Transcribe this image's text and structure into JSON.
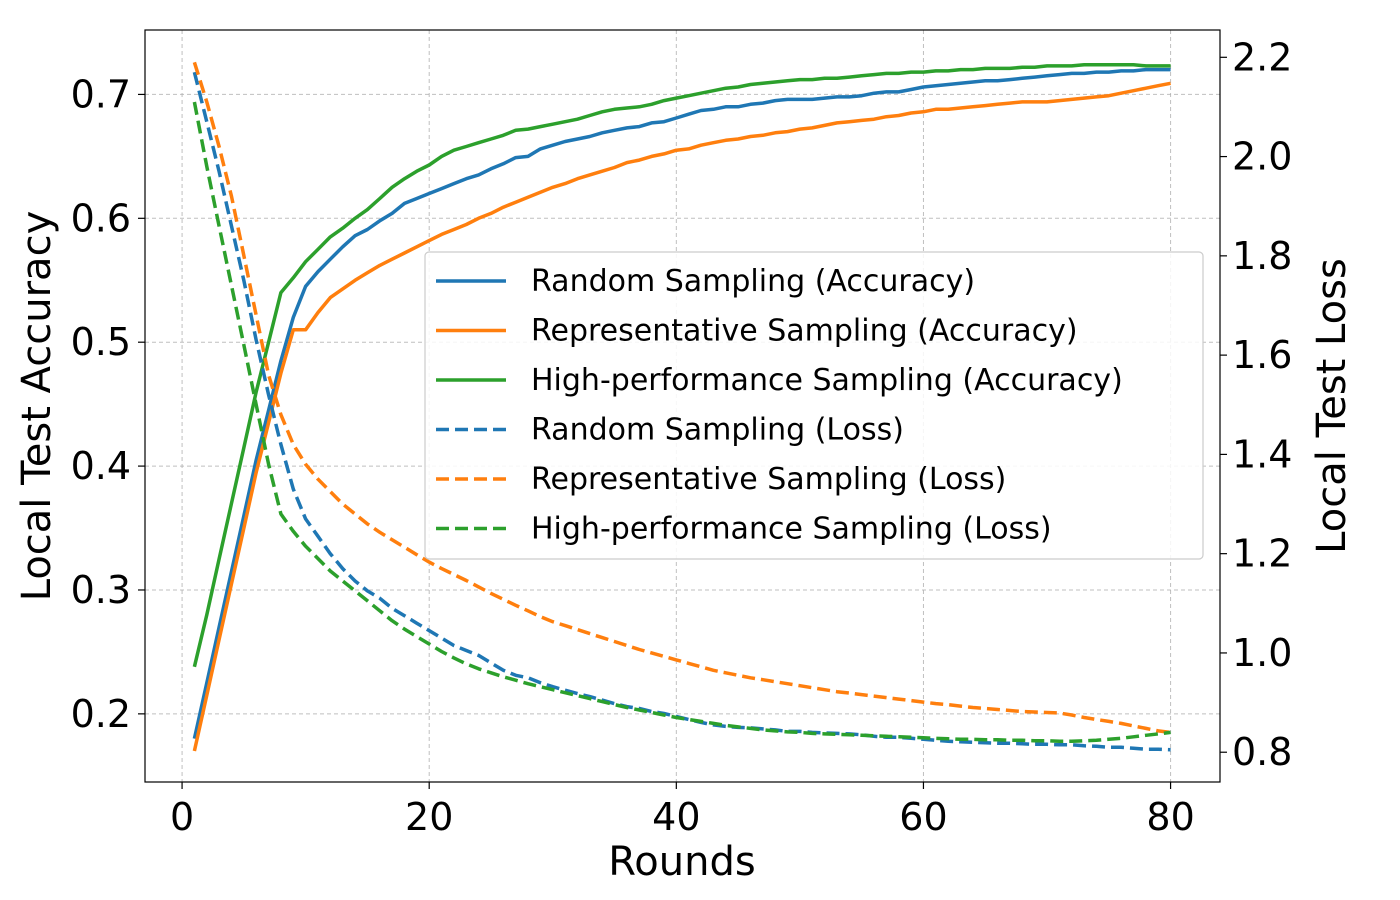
{
  "chart_data": {
    "type": "line",
    "xlabel": "Rounds",
    "ylabel_left": "Local Test Accuracy",
    "ylabel_right": "Local Test Loss",
    "xlim": [
      -3,
      84
    ],
    "ylim_left": [
      0.145,
      0.752
    ],
    "ylim_right": [
      0.74,
      2.255
    ],
    "xticks": [
      0,
      20,
      40,
      60,
      80
    ],
    "yticks_left": [
      0.2,
      0.3,
      0.4,
      0.5,
      0.6,
      0.7
    ],
    "yticks_right": [
      0.8,
      1.0,
      1.2,
      1.4,
      1.6,
      1.8,
      2.0,
      2.2
    ],
    "grid": true,
    "legend_position": "center-right",
    "x": [
      1,
      2,
      3,
      4,
      5,
      6,
      7,
      8,
      9,
      10,
      11,
      12,
      13,
      14,
      15,
      16,
      17,
      18,
      19,
      20,
      21,
      22,
      23,
      24,
      25,
      26,
      27,
      28,
      29,
      30,
      31,
      32,
      33,
      34,
      35,
      36,
      37,
      38,
      39,
      40,
      41,
      42,
      43,
      44,
      45,
      46,
      47,
      48,
      49,
      50,
      51,
      52,
      53,
      54,
      55,
      56,
      57,
      58,
      59,
      60,
      61,
      62,
      63,
      64,
      65,
      66,
      67,
      68,
      69,
      70,
      71,
      72,
      73,
      74,
      75,
      76,
      77,
      78,
      79,
      80
    ],
    "series": [
      {
        "name": "Random Sampling (Accuracy)",
        "axis": "left",
        "color": "#1f77b4",
        "dash": "solid",
        "values": [
          0.18,
          0.225,
          0.27,
          0.315,
          0.36,
          0.405,
          0.445,
          0.485,
          0.52,
          0.545,
          0.557,
          0.567,
          0.577,
          0.586,
          0.591,
          0.598,
          0.604,
          0.612,
          0.616,
          0.62,
          0.624,
          0.628,
          0.632,
          0.635,
          0.64,
          0.644,
          0.649,
          0.65,
          0.656,
          0.659,
          0.662,
          0.664,
          0.666,
          0.669,
          0.671,
          0.673,
          0.674,
          0.677,
          0.678,
          0.681,
          0.684,
          0.687,
          0.688,
          0.69,
          0.69,
          0.692,
          0.693,
          0.695,
          0.696,
          0.696,
          0.696,
          0.697,
          0.698,
          0.698,
          0.699,
          0.701,
          0.702,
          0.702,
          0.704,
          0.706,
          0.707,
          0.708,
          0.709,
          0.71,
          0.711,
          0.711,
          0.712,
          0.713,
          0.714,
          0.715,
          0.716,
          0.717,
          0.717,
          0.718,
          0.718,
          0.719,
          0.719,
          0.72,
          0.72,
          0.72
        ]
      },
      {
        "name": "Representative Sampling (Accuracy)",
        "axis": "left",
        "color": "#ff7f0e",
        "dash": "solid",
        "values": [
          0.17,
          0.215,
          0.26,
          0.305,
          0.35,
          0.395,
          0.435,
          0.475,
          0.51,
          0.51,
          0.524,
          0.536,
          0.543,
          0.55,
          0.556,
          0.562,
          0.567,
          0.572,
          0.577,
          0.582,
          0.587,
          0.591,
          0.595,
          0.6,
          0.604,
          0.609,
          0.613,
          0.617,
          0.621,
          0.625,
          0.628,
          0.632,
          0.635,
          0.638,
          0.641,
          0.645,
          0.647,
          0.65,
          0.652,
          0.655,
          0.656,
          0.659,
          0.661,
          0.663,
          0.664,
          0.666,
          0.667,
          0.669,
          0.67,
          0.672,
          0.673,
          0.675,
          0.677,
          0.678,
          0.679,
          0.68,
          0.682,
          0.683,
          0.685,
          0.686,
          0.688,
          0.688,
          0.689,
          0.69,
          0.691,
          0.692,
          0.693,
          0.694,
          0.694,
          0.694,
          0.695,
          0.696,
          0.697,
          0.698,
          0.699,
          0.701,
          0.703,
          0.705,
          0.707,
          0.709
        ]
      },
      {
        "name": "High-performance Sampling (Accuracy)",
        "axis": "left",
        "color": "#2ca02c",
        "dash": "solid",
        "values": [
          0.238,
          0.28,
          0.325,
          0.37,
          0.415,
          0.46,
          0.5,
          0.54,
          0.552,
          0.565,
          0.575,
          0.585,
          0.592,
          0.6,
          0.607,
          0.616,
          0.625,
          0.632,
          0.638,
          0.643,
          0.65,
          0.655,
          0.658,
          0.661,
          0.664,
          0.667,
          0.671,
          0.672,
          0.674,
          0.676,
          0.678,
          0.68,
          0.683,
          0.686,
          0.688,
          0.689,
          0.69,
          0.692,
          0.695,
          0.697,
          0.699,
          0.701,
          0.703,
          0.705,
          0.706,
          0.708,
          0.709,
          0.71,
          0.711,
          0.712,
          0.712,
          0.713,
          0.713,
          0.714,
          0.715,
          0.716,
          0.717,
          0.717,
          0.718,
          0.718,
          0.719,
          0.719,
          0.72,
          0.72,
          0.721,
          0.721,
          0.721,
          0.722,
          0.722,
          0.723,
          0.723,
          0.723,
          0.724,
          0.724,
          0.724,
          0.724,
          0.724,
          0.723,
          0.723,
          0.723
        ]
      },
      {
        "name": "Random Sampling (Loss)",
        "axis": "right",
        "color": "#1f77b4",
        "dash": "dashed",
        "values": [
          2.17,
          2.07,
          1.97,
          1.86,
          1.75,
          1.63,
          1.52,
          1.42,
          1.33,
          1.27,
          1.235,
          1.2,
          1.17,
          1.145,
          1.125,
          1.11,
          1.09,
          1.075,
          1.06,
          1.045,
          1.03,
          1.015,
          1.005,
          0.995,
          0.98,
          0.965,
          0.955,
          0.95,
          0.94,
          0.932,
          0.925,
          0.918,
          0.912,
          0.905,
          0.898,
          0.892,
          0.888,
          0.882,
          0.878,
          0.872,
          0.866,
          0.86,
          0.855,
          0.852,
          0.85,
          0.849,
          0.847,
          0.845,
          0.842,
          0.842,
          0.84,
          0.839,
          0.838,
          0.837,
          0.835,
          0.832,
          0.83,
          0.83,
          0.828,
          0.826,
          0.824,
          0.822,
          0.821,
          0.82,
          0.819,
          0.818,
          0.818,
          0.817,
          0.816,
          0.816,
          0.815,
          0.815,
          0.813,
          0.812,
          0.81,
          0.81,
          0.808,
          0.806,
          0.806,
          0.805
        ]
      },
      {
        "name": "Representative Sampling (Loss)",
        "axis": "right",
        "color": "#ff7f0e",
        "dash": "dashed",
        "values": [
          2.19,
          2.11,
          2.02,
          1.92,
          1.8,
          1.68,
          1.56,
          1.48,
          1.42,
          1.38,
          1.35,
          1.325,
          1.3,
          1.28,
          1.26,
          1.243,
          1.228,
          1.213,
          1.198,
          1.183,
          1.17,
          1.158,
          1.146,
          1.133,
          1.12,
          1.108,
          1.096,
          1.085,
          1.073,
          1.063,
          1.055,
          1.047,
          1.039,
          1.031,
          1.023,
          1.015,
          1.007,
          1.0,
          0.993,
          0.986,
          0.979,
          0.972,
          0.965,
          0.96,
          0.955,
          0.95,
          0.946,
          0.942,
          0.938,
          0.934,
          0.93,
          0.926,
          0.922,
          0.919,
          0.916,
          0.913,
          0.91,
          0.907,
          0.904,
          0.901,
          0.898,
          0.896,
          0.893,
          0.89,
          0.888,
          0.886,
          0.884,
          0.882,
          0.881,
          0.88,
          0.879,
          0.875,
          0.87,
          0.866,
          0.862,
          0.858,
          0.853,
          0.848,
          0.843,
          0.84
        ]
      },
      {
        "name": "High-performance Sampling (Loss)",
        "axis": "right",
        "color": "#2ca02c",
        "dash": "dashed",
        "values": [
          2.11,
          1.98,
          1.86,
          1.74,
          1.62,
          1.5,
          1.38,
          1.28,
          1.245,
          1.215,
          1.19,
          1.165,
          1.145,
          1.125,
          1.105,
          1.085,
          1.065,
          1.048,
          1.033,
          1.018,
          1.003,
          0.99,
          0.978,
          0.968,
          0.96,
          0.952,
          0.945,
          0.938,
          0.932,
          0.926,
          0.92,
          0.914,
          0.908,
          0.902,
          0.896,
          0.89,
          0.885,
          0.88,
          0.875,
          0.87,
          0.866,
          0.862,
          0.858,
          0.854,
          0.851,
          0.848,
          0.845,
          0.843,
          0.841,
          0.84,
          0.838,
          0.837,
          0.836,
          0.835,
          0.834,
          0.833,
          0.832,
          0.831,
          0.83,
          0.829,
          0.828,
          0.827,
          0.826,
          0.826,
          0.825,
          0.825,
          0.824,
          0.824,
          0.823,
          0.823,
          0.822,
          0.822,
          0.823,
          0.824,
          0.826,
          0.828,
          0.831,
          0.834,
          0.837,
          0.84
        ]
      }
    ]
  }
}
